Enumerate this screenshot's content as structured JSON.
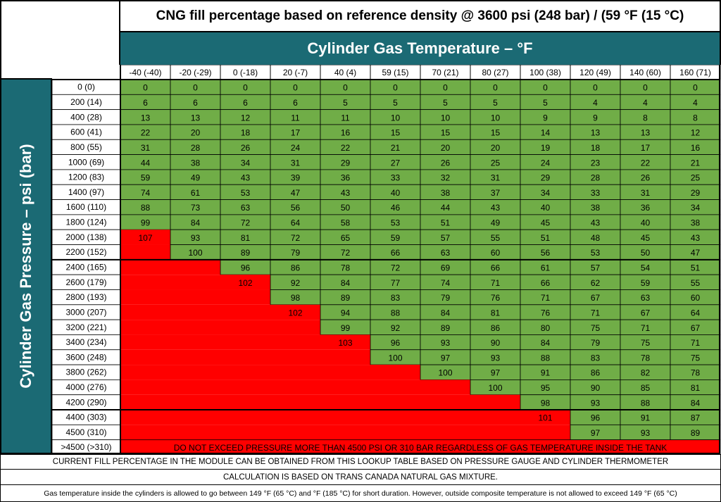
{
  "title": "CNG fill percentage based on reference density @ 3600 psi (248 bar) / (59 °F (15 °C)",
  "temperature_axis_label": "Cylinder Gas Temperature – °F",
  "pressure_axis_label": "Cylinder Gas Pressure – psi (bar)",
  "colors": {
    "band": "#1b6a74",
    "safe": "#70ad47",
    "danger": "#ff0000"
  },
  "chart_data": {
    "type": "table",
    "title": "CNG fill percentage based on reference density @ 3600 psi (248 bar) / (59 °F (15 °C)",
    "xlabel": "Cylinder Gas Temperature – °F",
    "ylabel": "Cylinder Gas Pressure – psi (bar)",
    "columns": [
      "-40 (-40)",
      "-20 (-29)",
      "0 (-18)",
      "20 (-7)",
      "40 (4)",
      "59 (15)",
      "70 (21)",
      "80 (27)",
      "100 (38)",
      "120 (49)",
      "140 (60)",
      "160 (71)"
    ],
    "rows": [
      {
        "label": "0 (0)",
        "values": [
          0,
          0,
          0,
          0,
          0,
          0,
          0,
          0,
          0,
          0,
          0,
          0
        ]
      },
      {
        "label": "200 (14)",
        "values": [
          6,
          6,
          6,
          6,
          5,
          5,
          5,
          5,
          5,
          4,
          4,
          4
        ]
      },
      {
        "label": "400 (28)",
        "values": [
          13,
          13,
          12,
          11,
          11,
          10,
          10,
          10,
          9,
          9,
          8,
          8
        ]
      },
      {
        "label": "600 (41)",
        "values": [
          22,
          20,
          18,
          17,
          16,
          15,
          15,
          15,
          14,
          13,
          13,
          12
        ]
      },
      {
        "label": "800 (55)",
        "values": [
          31,
          28,
          26,
          24,
          22,
          21,
          20,
          20,
          19,
          18,
          17,
          16
        ]
      },
      {
        "label": "1000 (69)",
        "values": [
          44,
          38,
          34,
          31,
          29,
          27,
          26,
          25,
          24,
          23,
          22,
          21
        ]
      },
      {
        "label": "1200 (83)",
        "values": [
          59,
          49,
          43,
          39,
          36,
          33,
          32,
          31,
          29,
          28,
          26,
          25
        ]
      },
      {
        "label": "1400 (97)",
        "values": [
          74,
          61,
          53,
          47,
          43,
          40,
          38,
          37,
          34,
          33,
          31,
          29
        ]
      },
      {
        "label": "1600 (110)",
        "values": [
          88,
          73,
          63,
          56,
          50,
          46,
          44,
          43,
          40,
          38,
          36,
          34
        ]
      },
      {
        "label": "1800 (124)",
        "values": [
          99,
          84,
          72,
          64,
          58,
          53,
          51,
          49,
          45,
          43,
          40,
          38
        ]
      },
      {
        "label": "2000 (138)",
        "values": [
          107,
          93,
          81,
          72,
          65,
          59,
          57,
          55,
          51,
          48,
          45,
          43
        ]
      },
      {
        "label": "2200 (152)",
        "values": [
          null,
          100,
          89,
          79,
          72,
          66,
          63,
          60,
          56,
          53,
          50,
          47
        ]
      },
      {
        "label": "2400 (165)",
        "values": [
          null,
          null,
          96,
          86,
          78,
          72,
          69,
          66,
          61,
          57,
          54,
          51
        ]
      },
      {
        "label": "2600 (179)",
        "values": [
          null,
          null,
          102,
          92,
          84,
          77,
          74,
          71,
          66,
          62,
          59,
          55
        ]
      },
      {
        "label": "2800 (193)",
        "values": [
          null,
          null,
          null,
          98,
          89,
          83,
          79,
          76,
          71,
          67,
          63,
          60
        ]
      },
      {
        "label": "3000 (207)",
        "values": [
          null,
          null,
          null,
          102,
          94,
          88,
          84,
          81,
          76,
          71,
          67,
          64
        ]
      },
      {
        "label": "3200 (221)",
        "values": [
          null,
          null,
          null,
          null,
          99,
          92,
          89,
          86,
          80,
          75,
          71,
          67
        ]
      },
      {
        "label": "3400 (234)",
        "values": [
          null,
          null,
          null,
          null,
          103,
          96,
          93,
          90,
          84,
          79,
          75,
          71
        ]
      },
      {
        "label": "3600 (248)",
        "values": [
          null,
          null,
          null,
          null,
          null,
          100,
          97,
          93,
          88,
          83,
          78,
          75
        ]
      },
      {
        "label": "3800 (262)",
        "values": [
          null,
          null,
          null,
          null,
          null,
          null,
          100,
          97,
          91,
          86,
          82,
          78
        ]
      },
      {
        "label": "4000 (276)",
        "values": [
          null,
          null,
          null,
          null,
          null,
          null,
          null,
          100,
          95,
          90,
          85,
          81
        ]
      },
      {
        "label": "4200 (290)",
        "values": [
          null,
          null,
          null,
          null,
          null,
          null,
          null,
          null,
          98,
          93,
          88,
          84
        ]
      },
      {
        "label": "4400 (303)",
        "values": [
          null,
          null,
          null,
          null,
          null,
          null,
          null,
          null,
          101,
          96,
          91,
          87
        ]
      },
      {
        "label": "4500 (310)",
        "values": [
          null,
          null,
          null,
          null,
          null,
          null,
          null,
          null,
          null,
          97,
          93,
          89
        ]
      }
    ],
    "danger_row": {
      "label": ">4500 (>310)",
      "text": "DO NOT EXCEED PRESSURE  MORE THAN 4500 PSI OR 310 BAR REGARDLESS OF GAS TEMPERATURE INSIDE THE TANK"
    },
    "danger_threshold_percent": 100
  },
  "notes": {
    "lookup": "CURRENT FILL PERCENTAGE IN THE MODULE CAN BE OBTAINED FROM THIS LOOKUP TABLE BASED ON PRESSURE GAUGE AND CYLINDER THERMOMETER",
    "calculation": "CALCULATION IS BASED ON TRANS CANADA NATURAL GAS MIXTURE.",
    "temperature_limit": "Gas temperature inside the cylinders is allowed to go between 149 °F (65 °C) and °F (185 °C) for short duration. However, outside composite temperature is not allowed to exceed 149 °F (65 °C)"
  }
}
